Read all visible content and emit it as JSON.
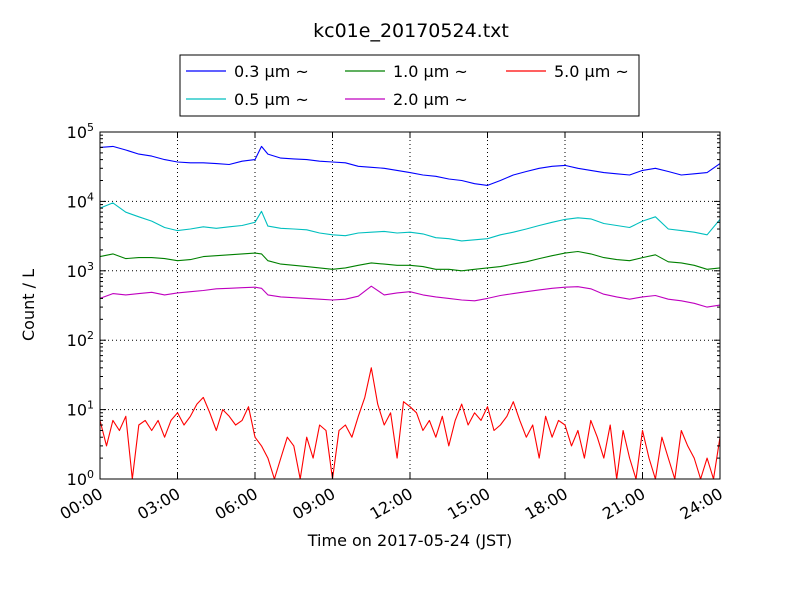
{
  "chart_data": {
    "type": "line",
    "title": "kc01e_20170524.txt",
    "xlabel": "Time on 2017-05-24 (JST)",
    "ylabel": "Count / L",
    "xlim": [
      0,
      24
    ],
    "ylim": [
      1,
      100000
    ],
    "yscale": "log",
    "grid": true,
    "legend_position": "top-center",
    "x_ticks": [
      0,
      3,
      6,
      9,
      12,
      15,
      18,
      21,
      24
    ],
    "x_tick_labels": [
      "00:00",
      "03:00",
      "06:00",
      "09:00",
      "12:00",
      "15:00",
      "18:00",
      "21:00",
      "24:00"
    ],
    "y_ticks": [
      1,
      10,
      100,
      1000,
      10000,
      100000
    ],
    "y_tick_labels": [
      {
        "base": "10",
        "exp": "0"
      },
      {
        "base": "10",
        "exp": "1"
      },
      {
        "base": "10",
        "exp": "2"
      },
      {
        "base": "10",
        "exp": "3"
      },
      {
        "base": "10",
        "exp": "4"
      },
      {
        "base": "10",
        "exp": "5"
      }
    ],
    "series": [
      {
        "name": "0.3 µm ~",
        "color": "#0000ff",
        "x": [
          0,
          0.5,
          1,
          1.5,
          2,
          2.5,
          3,
          3.5,
          4,
          4.5,
          5,
          5.5,
          6,
          6.25,
          6.5,
          7,
          7.5,
          8,
          8.5,
          9,
          9.5,
          10,
          10.5,
          11,
          11.5,
          12,
          12.5,
          13,
          13.5,
          14,
          14.5,
          15,
          15.5,
          16,
          16.5,
          17,
          17.5,
          18,
          18.5,
          19,
          19.5,
          20,
          20.5,
          21,
          21.5,
          22,
          22.5,
          23,
          23.5,
          24
        ],
        "values": [
          60000,
          62000,
          55000,
          48000,
          45000,
          40000,
          37000,
          36000,
          36000,
          35000,
          34000,
          38000,
          40000,
          62000,
          48000,
          42000,
          41000,
          40000,
          38000,
          37000,
          36000,
          32000,
          31000,
          30000,
          28000,
          26000,
          24000,
          23000,
          21000,
          20000,
          18000,
          17000,
          20000,
          24000,
          27000,
          30000,
          32000,
          33000,
          30000,
          28000,
          26000,
          25000,
          24000,
          28000,
          30000,
          27000,
          24000,
          25000,
          26000,
          35000
        ]
      },
      {
        "name": "0.5 µm ~",
        "color": "#00bfbf",
        "x": [
          0,
          0.5,
          1,
          1.5,
          2,
          2.5,
          3,
          3.5,
          4,
          4.5,
          5,
          5.5,
          6,
          6.25,
          6.5,
          7,
          7.5,
          8,
          8.5,
          9,
          9.5,
          10,
          10.5,
          11,
          11.5,
          12,
          12.5,
          13,
          13.5,
          14,
          14.5,
          15,
          15.5,
          16,
          16.5,
          17,
          17.5,
          18,
          18.5,
          19,
          19.5,
          20,
          20.5,
          21,
          21.5,
          22,
          22.5,
          23,
          23.5,
          24
        ],
        "values": [
          8000,
          9500,
          7000,
          6000,
          5200,
          4200,
          3800,
          4000,
          4300,
          4100,
          4300,
          4500,
          5000,
          7200,
          4400,
          4100,
          4000,
          3900,
          3500,
          3300,
          3200,
          3500,
          3600,
          3700,
          3500,
          3600,
          3400,
          3000,
          2900,
          2700,
          2800,
          2900,
          3300,
          3600,
          4000,
          4500,
          5000,
          5500,
          5800,
          5600,
          4800,
          4500,
          4200,
          5200,
          6000,
          4000,
          3800,
          3600,
          3300,
          5500
        ]
      },
      {
        "name": "1.0 µm ~",
        "color": "#008000",
        "x": [
          0,
          0.5,
          1,
          1.5,
          2,
          2.5,
          3,
          3.5,
          4,
          4.5,
          5,
          5.5,
          6,
          6.25,
          6.5,
          7,
          7.5,
          8,
          8.5,
          9,
          9.5,
          10,
          10.5,
          11,
          11.5,
          12,
          12.5,
          13,
          13.5,
          14,
          14.5,
          15,
          15.5,
          16,
          16.5,
          17,
          17.5,
          18,
          18.5,
          19,
          19.5,
          20,
          20.5,
          21,
          21.5,
          22,
          22.5,
          23,
          23.5,
          24
        ],
        "values": [
          1600,
          1750,
          1500,
          1550,
          1550,
          1500,
          1400,
          1450,
          1600,
          1650,
          1700,
          1750,
          1800,
          1750,
          1400,
          1250,
          1200,
          1150,
          1100,
          1050,
          1100,
          1200,
          1300,
          1250,
          1200,
          1200,
          1150,
          1050,
          1050,
          1000,
          1050,
          1100,
          1150,
          1250,
          1350,
          1500,
          1650,
          1800,
          1900,
          1750,
          1550,
          1450,
          1400,
          1550,
          1700,
          1350,
          1300,
          1200,
          1050,
          1100
        ]
      },
      {
        "name": "2.0 µm ~",
        "color": "#bf00bf",
        "x": [
          0,
          0.5,
          1,
          1.5,
          2,
          2.5,
          3,
          3.5,
          4,
          4.5,
          5,
          5.5,
          6,
          6.25,
          6.5,
          7,
          7.5,
          8,
          8.5,
          9,
          9.5,
          10,
          10.5,
          11,
          11.5,
          12,
          12.5,
          13,
          13.5,
          14,
          14.5,
          15,
          15.5,
          16,
          16.5,
          17,
          17.5,
          18,
          18.5,
          19,
          19.5,
          20,
          20.5,
          21,
          21.5,
          22,
          22.5,
          23,
          23.5,
          24
        ],
        "values": [
          400,
          470,
          450,
          470,
          490,
          450,
          480,
          500,
          520,
          550,
          560,
          570,
          580,
          560,
          450,
          420,
          410,
          400,
          390,
          380,
          390,
          430,
          600,
          450,
          480,
          500,
          450,
          420,
          400,
          380,
          370,
          400,
          440,
          470,
          500,
          530,
          560,
          580,
          590,
          550,
          460,
          420,
          390,
          420,
          440,
          390,
          370,
          340,
          300,
          320
        ]
      },
      {
        "name": "5.0 µm ~",
        "color": "#ff0000",
        "x": [
          0,
          0.25,
          0.5,
          0.75,
          1,
          1.25,
          1.5,
          1.75,
          2,
          2.25,
          2.5,
          2.75,
          3,
          3.25,
          3.5,
          3.75,
          4,
          4.25,
          4.5,
          4.75,
          5,
          5.25,
          5.5,
          5.75,
          6,
          6.25,
          6.5,
          6.75,
          7,
          7.25,
          7.5,
          7.75,
          8,
          8.25,
          8.5,
          8.75,
          9,
          9.25,
          9.5,
          9.75,
          10,
          10.25,
          10.5,
          10.75,
          11,
          11.25,
          11.5,
          11.75,
          12,
          12.25,
          12.5,
          12.75,
          13,
          13.25,
          13.5,
          13.75,
          14,
          14.25,
          14.5,
          14.75,
          15,
          15.25,
          15.5,
          15.75,
          16,
          16.25,
          16.5,
          16.75,
          17,
          17.25,
          17.5,
          17.75,
          18,
          18.25,
          18.5,
          18.75,
          19,
          19.25,
          19.5,
          19.75,
          20,
          20.25,
          20.5,
          20.75,
          21,
          21.25,
          21.5,
          21.75,
          22,
          22.25,
          22.5,
          22.75,
          23,
          23.25,
          23.5,
          23.75,
          24
        ],
        "values": [
          7,
          3,
          7,
          5,
          8,
          1,
          6,
          7,
          5,
          7,
          4,
          7,
          9,
          6,
          8,
          12,
          15,
          9,
          5,
          10,
          8,
          6,
          7,
          11,
          4,
          3,
          2,
          1,
          2,
          4,
          3,
          1,
          4,
          2,
          6,
          5,
          1,
          5,
          6,
          4,
          8,
          15,
          40,
          12,
          6,
          9,
          2,
          13,
          11,
          9,
          5,
          7,
          4,
          8,
          3,
          7,
          12,
          6,
          9,
          7,
          11,
          5,
          6,
          8,
          13,
          7,
          4,
          6,
          2,
          8,
          4,
          7,
          6,
          3,
          5,
          2,
          7,
          4,
          2,
          6,
          1,
          5,
          2,
          1,
          5,
          2,
          1,
          4,
          2,
          1,
          5,
          3,
          2,
          1,
          2,
          1,
          4
        ]
      }
    ]
  }
}
